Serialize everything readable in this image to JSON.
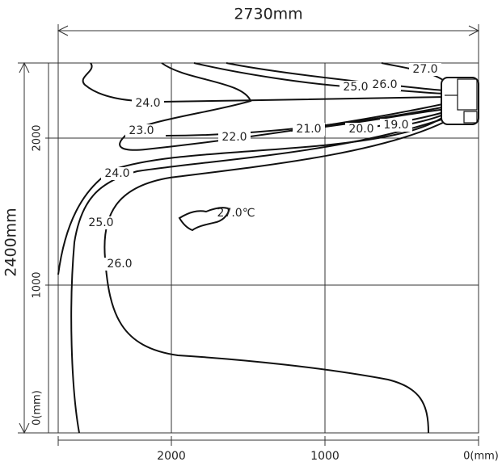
{
  "dimensions": {
    "width": "2730mm",
    "height": "2400mm"
  },
  "x_axis": {
    "ticks": [
      "2000",
      "1000",
      "0(mm)"
    ]
  },
  "y_axis": {
    "ticks": [
      "2000",
      "1000",
      "0(mm)"
    ]
  },
  "contours": [
    {
      "label": "27.0"
    },
    {
      "label": "26.0"
    },
    {
      "label": "25.0"
    },
    {
      "label": "24.0"
    },
    {
      "label": "23.0"
    },
    {
      "label": "22.0"
    },
    {
      "label": "21.0"
    },
    {
      "label": "20.0"
    },
    {
      "label": "19.0"
    },
    {
      "label": "24.0"
    },
    {
      "label": "25.0"
    },
    {
      "label": "26.0"
    },
    {
      "label": "27.0℃"
    }
  ]
}
